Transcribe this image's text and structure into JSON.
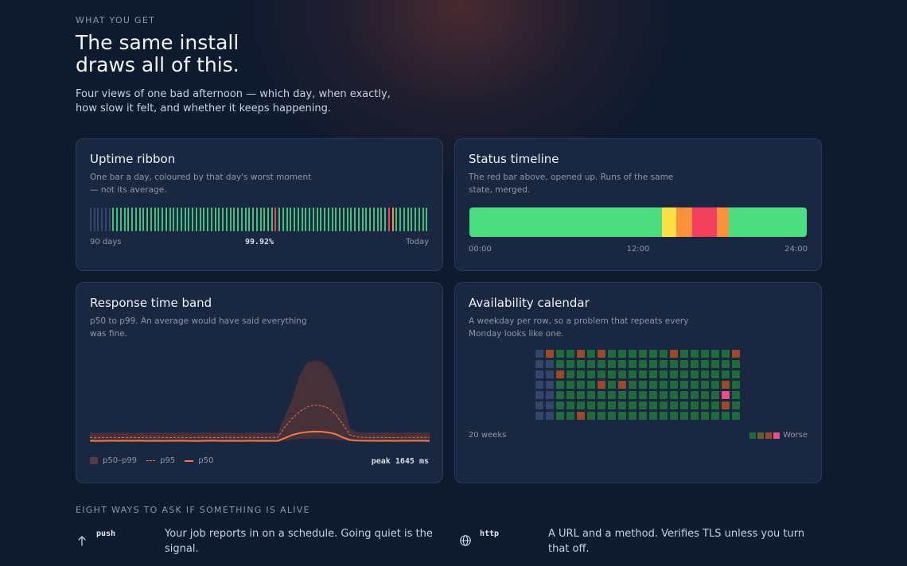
{
  "hero": {
    "eyebrow": "WHAT YOU GET",
    "headline_line1": "The same install",
    "headline_line2": "draws all of this.",
    "lede": "Four views of one bad afternoon — which day, when exactly, how slow it felt, and whether it keeps happening."
  },
  "colors": {
    "up": "#4ade80",
    "warn": "#fde047",
    "degraded": "#fb923c",
    "down": "#f43f5e",
    "nodata": "#34476a",
    "cal_good": "#1f6b3a",
    "cal_warn": "#9a4b26",
    "cal_bad": "#ec4e86"
  },
  "uptime_ribbon": {
    "title": "Uptime ribbon",
    "desc": "One bar a day, coloured by that day's worst moment — not its average.",
    "left_label": "90 days",
    "center_value": "99.92%",
    "right_label": "Today",
    "days": [
      "nodata",
      "nodata",
      "nodata",
      "nodata",
      "nodata",
      "nodata",
      "up",
      "up",
      "up",
      "up",
      "up",
      "up",
      "up",
      "up",
      "up",
      "up",
      "up",
      "up",
      "up",
      "up",
      "up",
      "up",
      "up",
      "up",
      "up",
      "up",
      "up",
      "up",
      "up",
      "up",
      "up",
      "up",
      "up",
      "up",
      "up",
      "up",
      "up",
      "up",
      "up",
      "up",
      "up",
      "up",
      "up",
      "up",
      "up",
      "up",
      "up",
      "up",
      "up",
      "down",
      "up",
      "up",
      "up",
      "up",
      "up",
      "up",
      "up",
      "up",
      "up",
      "up",
      "up",
      "up",
      "up",
      "up",
      "up",
      "up",
      "up",
      "up",
      "up",
      "up",
      "up",
      "up",
      "up",
      "up",
      "up",
      "up",
      "up",
      "up",
      "up",
      "down",
      "degraded",
      "up",
      "up",
      "up",
      "up",
      "up",
      "up",
      "up",
      "up",
      "up"
    ]
  },
  "status_timeline": {
    "title": "Status timeline",
    "desc": "The red bar above, opened up. Runs of the same state, merged.",
    "segments": [
      {
        "state": "up",
        "fraction": 0.571
      },
      {
        "state": "warn",
        "fraction": 0.042
      },
      {
        "state": "degraded",
        "fraction": 0.047
      },
      {
        "state": "down",
        "fraction": 0.073
      },
      {
        "state": "degraded",
        "fraction": 0.035
      },
      {
        "state": "up",
        "fraction": 0.232
      }
    ],
    "axis_labels": [
      "00:00",
      "12:00",
      "24:00"
    ]
  },
  "response_band": {
    "title": "Response time band",
    "desc": "p50 to p99. An average would have said everything was fine.",
    "legend": [
      "p50–p99",
      "p95",
      "p50"
    ],
    "peak_label": "peak 1645 ms",
    "series": {
      "p99": [
        245,
        240,
        246,
        242,
        250,
        244,
        238,
        248,
        243,
        252,
        241,
        247,
        239,
        251,
        244,
        242,
        249,
        240,
        245,
        250,
        243,
        238,
        247,
        246,
        252,
        241,
        244,
        560,
        900,
        1350,
        1600,
        1645,
        1630,
        1520,
        1250,
        860,
        320,
        250,
        244,
        248,
        241,
        253,
        246,
        240,
        249,
        245,
        242,
        250
      ],
      "p95": [
        150,
        145,
        148,
        152,
        146,
        149,
        151,
        147,
        150,
        153,
        148,
        146,
        152,
        149,
        147,
        151,
        150,
        148,
        146,
        152,
        149,
        150,
        147,
        151,
        148,
        150,
        152,
        360,
        520,
        650,
        740,
        780,
        770,
        720,
        600,
        400,
        200,
        160,
        150,
        148,
        152,
        149,
        147,
        151,
        150,
        148,
        152,
        150
      ],
      "p50": [
        85,
        82,
        84,
        86,
        83,
        85,
        84,
        86,
        82,
        85,
        84,
        83,
        86,
        85,
        84,
        82,
        85,
        86,
        83,
        84,
        85,
        82,
        86,
        84,
        85,
        83,
        84,
        140,
        200,
        235,
        255,
        265,
        262,
        248,
        215,
        150,
        100,
        90,
        86,
        85,
        84,
        86,
        83,
        85,
        84,
        86,
        85,
        84
      ],
      "p50_floor": [
        70,
        68,
        70,
        72,
        69,
        71,
        70,
        68,
        71,
        70,
        69,
        72,
        70,
        68,
        71,
        70,
        69,
        70,
        72,
        68,
        70,
        71,
        69,
        70,
        68,
        71,
        70,
        90,
        110,
        120,
        125,
        128,
        126,
        120,
        110,
        95,
        80,
        72,
        70,
        69,
        71,
        70,
        68,
        72,
        70,
        69,
        71,
        70
      ],
      "ymax": 1700
    }
  },
  "availability_calendar": {
    "title": "Availability calendar",
    "desc": "A weekday per row, so a problem that repeats every Monday looks like one.",
    "footer_left": "20 weeks",
    "legend_label": "Worse",
    "weeks": 20,
    "rows": [
      [
        "nodata",
        "cal_warn",
        "cal_good",
        "cal_good",
        "cal_warn",
        "cal_good",
        "cal_warn",
        "cal_good",
        "cal_good",
        "cal_good",
        "cal_good",
        "cal_good",
        "cal_good",
        "cal_warn",
        "cal_good",
        "cal_good",
        "cal_good",
        "cal_good",
        "cal_good",
        "cal_warn"
      ],
      [
        "nodata",
        "nodata",
        "cal_good",
        "cal_good",
        "cal_good",
        "cal_good",
        "cal_good",
        "cal_good",
        "cal_good",
        "cal_good",
        "cal_good",
        "cal_good",
        "cal_good",
        "cal_good",
        "cal_good",
        "cal_good",
        "cal_good",
        "cal_good",
        "cal_good",
        "cal_good"
      ],
      [
        "nodata",
        "nodata",
        "cal_warn",
        "cal_good",
        "cal_good",
        "cal_good",
        "cal_good",
        "cal_good",
        "cal_good",
        "cal_good",
        "cal_good",
        "cal_good",
        "cal_good",
        "cal_good",
        "cal_good",
        "cal_good",
        "cal_good",
        "cal_good",
        "cal_good",
        "cal_good"
      ],
      [
        "nodata",
        "nodata",
        "cal_good",
        "cal_good",
        "cal_good",
        "cal_good",
        "cal_warn",
        "cal_good",
        "cal_warn",
        "cal_good",
        "cal_good",
        "cal_good",
        "cal_good",
        "cal_good",
        "cal_good",
        "cal_good",
        "cal_good",
        "cal_good",
        "cal_warn",
        "cal_good"
      ],
      [
        "nodata",
        "nodata",
        "cal_good",
        "cal_good",
        "cal_good",
        "cal_good",
        "cal_good",
        "cal_good",
        "cal_good",
        "cal_good",
        "cal_good",
        "cal_good",
        "cal_good",
        "cal_good",
        "cal_good",
        "cal_good",
        "cal_good",
        "cal_good",
        "cal_bad",
        "cal_good"
      ],
      [
        "nodata",
        "nodata",
        "cal_good",
        "cal_good",
        "cal_good",
        "cal_good",
        "cal_good",
        "cal_good",
        "cal_good",
        "cal_good",
        "cal_good",
        "cal_good",
        "cal_good",
        "cal_good",
        "cal_good",
        "cal_good",
        "cal_good",
        "cal_good",
        "cal_warn",
        "cal_good"
      ],
      [
        "nodata",
        "nodata",
        "cal_good",
        "cal_good",
        "cal_warn",
        "cal_good",
        "cal_good",
        "cal_good",
        "cal_good",
        "cal_good",
        "cal_good",
        "cal_good",
        "cal_good",
        "cal_good",
        "cal_good",
        "cal_good",
        "cal_good",
        "cal_good",
        "cal_good",
        "cal_good"
      ]
    ]
  },
  "section2": {
    "eyebrow": "EIGHT WAYS TO ASK IF SOMETHING IS ALIVE",
    "features": [
      {
        "icon": "arrow-up-icon",
        "keyword": "push",
        "desc": "Your job reports in on a schedule. Going quiet is the signal."
      },
      {
        "icon": "globe-icon",
        "keyword": "http",
        "desc": "A URL and a method. Verifies TLS unless you turn that off."
      }
    ]
  }
}
